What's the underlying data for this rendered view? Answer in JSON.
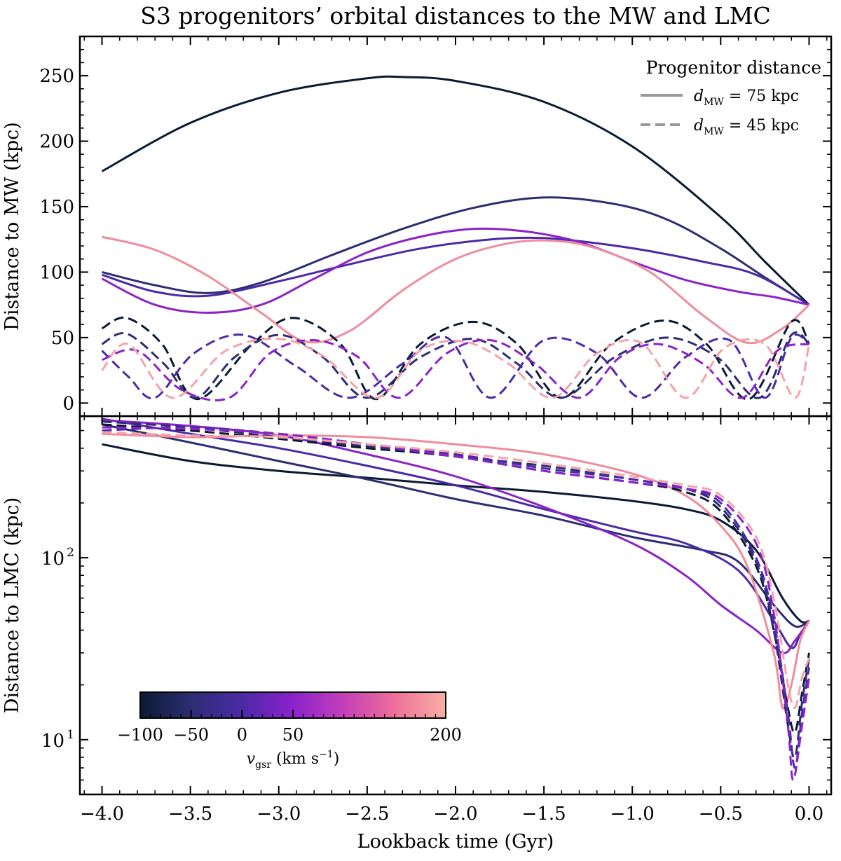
{
  "chart_data": [
    {
      "type": "line",
      "id": "mw",
      "title": "S3 progenitors’ orbital distances to the MW and LMC",
      "xlabel": "Lookback time (Gyr)",
      "ylabel": "Distance to MW (kpc)",
      "xlim": [
        -4.125,
        0.125
      ],
      "ylim": [
        -10,
        280
      ],
      "xticks": [
        -4.0,
        -3.5,
        -3.0,
        -2.5,
        -2.0,
        -1.5,
        -1.0,
        -0.5,
        0.0
      ],
      "xtick_labels": [
        "−4.0",
        "−3.5",
        "−3.0",
        "−2.5",
        "−2.0",
        "−1.5",
        "−1.0",
        "−0.5",
        "0.0"
      ],
      "yticks": [
        0,
        50,
        100,
        150,
        200,
        250
      ],
      "ytick_labels": [
        "0",
        "50",
        "100",
        "150",
        "200",
        "250"
      ],
      "legend": {
        "title": "Progenitor distance",
        "location": "top-right",
        "entries": [
          {
            "label_pre": "d",
            "label_sub": "MW",
            "label_post": " = 75 kpc",
            "style": "solid",
            "color": "#999999"
          },
          {
            "label_pre": "d",
            "label_sub": "MW",
            "label_post": " = 45 kpc",
            "style": "dashed",
            "color": "#999999"
          }
        ]
      },
      "series": [
        {
          "name": "solid, vgsr=-100",
          "style": "solid",
          "color": "#0b1a33",
          "x": [
            -4.0,
            -3.5,
            -3.0,
            -2.5,
            -2.3,
            -2.0,
            -1.5,
            -1.0,
            -0.5,
            -0.25,
            0.0
          ],
          "y": [
            177,
            214,
            237,
            248,
            249,
            246,
            230,
            196,
            142,
            108,
            75
          ]
        },
        {
          "name": "solid, vgsr=-50",
          "style": "solid",
          "color": "#2d2d72",
          "x": [
            -4.0,
            -3.7,
            -3.4,
            -3.1,
            -2.7,
            -2.3,
            -1.9,
            -1.5,
            -1.1,
            -0.8,
            -0.5,
            -0.25,
            0.0
          ],
          "y": [
            100,
            90,
            84,
            92,
            113,
            133,
            149,
            157,
            152,
            140,
            118,
            96,
            75
          ]
        },
        {
          "name": "solid, vgsr=-20",
          "style": "solid",
          "color": "#4a2aa6",
          "x": [
            -4.0,
            -3.7,
            -3.4,
            -3.0,
            -2.6,
            -2.2,
            -1.8,
            -1.5,
            -1.2,
            -0.9,
            -0.6,
            -0.3,
            0.0
          ],
          "y": [
            98,
            85,
            82,
            93,
            106,
            118,
            125,
            126,
            122,
            116,
            108,
            98,
            75
          ]
        },
        {
          "name": "solid, vgsr=20",
          "style": "solid",
          "color": "#8a22cc",
          "x": [
            -4.0,
            -3.7,
            -3.4,
            -3.1,
            -2.8,
            -2.5,
            -2.2,
            -1.9,
            -1.6,
            -1.3,
            -1.0,
            -0.7,
            -0.4,
            -0.2,
            0.0
          ],
          "y": [
            95,
            75,
            69,
            75,
            95,
            115,
            127,
            133,
            131,
            123,
            108,
            94,
            85,
            81,
            75
          ]
        },
        {
          "name": "solid, vgsr=200",
          "style": "solid",
          "color": "#f08c9c",
          "x": [
            -4.0,
            -3.7,
            -3.4,
            -3.1,
            -2.85,
            -2.6,
            -2.3,
            -2.0,
            -1.7,
            -1.45,
            -1.2,
            -0.9,
            -0.6,
            -0.35,
            -0.15,
            0.0
          ],
          "y": [
            127,
            117,
            97,
            69,
            47,
            55,
            86,
            110,
            122,
            124,
            118,
            100,
            67,
            46,
            57,
            75
          ]
        },
        {
          "name": "dashed, vgsr=-100",
          "style": "dashed",
          "color": "#0b1a33",
          "x": [
            -4.0,
            -3.86,
            -3.66,
            -3.46,
            -3.15,
            -2.92,
            -2.65,
            -2.45,
            -2.2,
            -1.9,
            -1.65,
            -1.4,
            -1.12,
            -0.82,
            -0.58,
            -0.34,
            -0.1,
            0.0
          ],
          "y": [
            57,
            65,
            45,
            3,
            45,
            65,
            45,
            3,
            45,
            62,
            45,
            4,
            45,
            63,
            45,
            3,
            62,
            45
          ]
        },
        {
          "name": "dashed, vgsr=-50",
          "style": "dashed",
          "color": "#2d2d72",
          "x": [
            -4.0,
            -3.86,
            -3.65,
            -3.47,
            -3.25,
            -3.0,
            -2.75,
            -2.5,
            -2.2,
            -1.9,
            -1.65,
            -1.4,
            -1.1,
            -0.8,
            -0.52,
            -0.28,
            -0.1,
            0.0
          ],
          "y": [
            45,
            53,
            30,
            4,
            35,
            52,
            35,
            4,
            35,
            49,
            30,
            4,
            35,
            50,
            35,
            4,
            52,
            45
          ]
        },
        {
          "name": "dashed, vgsr=-20",
          "style": "dashed",
          "color": "#4a2aa6",
          "x": [
            -4.0,
            -3.85,
            -3.7,
            -3.48,
            -3.2,
            -2.9,
            -2.6,
            -2.3,
            -2.05,
            -1.8,
            -1.5,
            -1.2,
            -0.95,
            -0.7,
            -0.45,
            -0.25,
            -0.1,
            0.0
          ],
          "y": [
            40,
            20,
            4,
            38,
            52,
            28,
            4,
            30,
            50,
            4,
            48,
            38,
            4,
            35,
            48,
            4,
            50,
            45
          ]
        },
        {
          "name": "dashed, vgsr=20",
          "style": "dashed",
          "color": "#8a22cc",
          "x": [
            -4.0,
            -3.8,
            -3.55,
            -3.28,
            -3.05,
            -2.8,
            -2.55,
            -2.32,
            -2.05,
            -1.8,
            -1.55,
            -1.3,
            -1.07,
            -0.85,
            -0.6,
            -0.38,
            -0.18,
            0.0
          ],
          "y": [
            33,
            40,
            10,
            4,
            38,
            48,
            35,
            4,
            38,
            48,
            30,
            4,
            35,
            45,
            30,
            4,
            40,
            45
          ]
        },
        {
          "name": "dashed, vgsr=200",
          "style": "dashed",
          "color": "#f5a3a8",
          "x": [
            -4.0,
            -3.85,
            -3.6,
            -3.3,
            -3.0,
            -2.75,
            -2.45,
            -2.2,
            -1.95,
            -1.7,
            -1.45,
            -1.2,
            -0.95,
            -0.7,
            -0.48,
            -0.25,
            -0.08,
            0.0
          ],
          "y": [
            25,
            45,
            4,
            40,
            49,
            36,
            4,
            40,
            47,
            30,
            4,
            38,
            46,
            4,
            42,
            45,
            4,
            45
          ]
        }
      ]
    },
    {
      "type": "line",
      "id": "lmc",
      "xlabel": "Lookback time (Gyr)",
      "ylabel": "Distance to LMC (kpc)",
      "yscale": "log",
      "xlim": [
        -4.125,
        0.125
      ],
      "ylim": [
        5,
        600
      ],
      "ytick_major": [
        10,
        100
      ],
      "ytick_labels": [
        {
          "base": "10",
          "exp": "1"
        },
        {
          "base": "10",
          "exp": "2"
        }
      ],
      "series": [
        {
          "name": "solid, vgsr=-100",
          "style": "solid",
          "color": "#0b1a33",
          "x": [
            -4.0,
            -3.5,
            -3.0,
            -2.5,
            -2.0,
            -1.5,
            -1.0,
            -0.7,
            -0.5,
            -0.3,
            -0.15,
            -0.05,
            0.0
          ],
          "y": [
            420,
            340,
            300,
            275,
            250,
            230,
            205,
            185,
            160,
            110,
            60,
            45,
            45
          ]
        },
        {
          "name": "solid, vgsr=-50",
          "style": "solid",
          "color": "#2d2d72",
          "x": [
            -4.0,
            -3.5,
            -3.0,
            -2.5,
            -2.0,
            -1.5,
            -1.0,
            -0.6,
            -0.4,
            -0.2,
            -0.08,
            0.0
          ],
          "y": [
            540,
            430,
            340,
            270,
            210,
            170,
            130,
            110,
            95,
            55,
            42,
            45
          ]
        },
        {
          "name": "solid, vgsr=-20",
          "style": "solid",
          "color": "#4a2aa6",
          "x": [
            -4.0,
            -3.5,
            -3.0,
            -2.5,
            -2.0,
            -1.5,
            -1.0,
            -0.7,
            -0.4,
            -0.2,
            -0.1,
            -0.05,
            0.0
          ],
          "y": [
            580,
            480,
            400,
            320,
            250,
            185,
            140,
            120,
            85,
            45,
            32,
            38,
            45
          ]
        },
        {
          "name": "solid, vgsr=20",
          "style": "solid",
          "color": "#8a22cc",
          "x": [
            -4.0,
            -3.5,
            -3.0,
            -2.5,
            -2.0,
            -1.5,
            -1.0,
            -0.7,
            -0.5,
            -0.3,
            -0.15,
            -0.08,
            0.0
          ],
          "y": [
            570,
            530,
            470,
            370,
            280,
            190,
            120,
            80,
            55,
            40,
            30,
            35,
            45
          ]
        },
        {
          "name": "solid, vgsr=200",
          "style": "solid",
          "color": "#f08c9c",
          "x": [
            -4.0,
            -3.5,
            -3.0,
            -2.5,
            -2.0,
            -1.5,
            -1.0,
            -0.7,
            -0.5,
            -0.35,
            -0.2,
            -0.15,
            -0.1,
            -0.05,
            0.0
          ],
          "y": [
            480,
            460,
            470,
            460,
            420,
            370,
            290,
            220,
            150,
            90,
            30,
            15,
            20,
            35,
            45
          ]
        },
        {
          "name": "dashed, vgsr=-100",
          "style": "dashed",
          "color": "#0b1a33",
          "x": [
            -4.0,
            -3.5,
            -3.0,
            -2.5,
            -2.0,
            -1.5,
            -1.0,
            -0.7,
            -0.5,
            -0.3,
            -0.2,
            -0.12,
            -0.08,
            -0.04,
            0.0
          ],
          "y": [
            540,
            500,
            450,
            400,
            360,
            300,
            260,
            230,
            180,
            90,
            40,
            15,
            11,
            18,
            30
          ]
        },
        {
          "name": "dashed, vgsr=-50",
          "style": "dashed",
          "color": "#2d2d72",
          "x": [
            -4.0,
            -3.5,
            -3.0,
            -2.5,
            -2.0,
            -1.5,
            -1.0,
            -0.7,
            -0.5,
            -0.3,
            -0.2,
            -0.12,
            -0.08,
            -0.04,
            0.0
          ],
          "y": [
            560,
            520,
            460,
            410,
            360,
            320,
            270,
            240,
            190,
            95,
            40,
            12,
            8,
            16,
            28
          ]
        },
        {
          "name": "dashed, vgsr=-20",
          "style": "dashed",
          "color": "#4a2aa6",
          "x": [
            -4.0,
            -3.5,
            -3.0,
            -2.5,
            -2.0,
            -1.5,
            -1.0,
            -0.7,
            -0.5,
            -0.3,
            -0.2,
            -0.12,
            -0.08,
            -0.04,
            0.0
          ],
          "y": [
            500,
            520,
            480,
            420,
            370,
            310,
            270,
            240,
            200,
            100,
            45,
            14,
            7,
            14,
            25
          ]
        },
        {
          "name": "dashed, vgsr=20",
          "style": "dashed",
          "color": "#8a22cc",
          "x": [
            -4.0,
            -3.5,
            -3.0,
            -2.5,
            -2.0,
            -1.5,
            -1.0,
            -0.7,
            -0.5,
            -0.3,
            -0.2,
            -0.12,
            -0.09,
            -0.04,
            0.0
          ],
          "y": [
            520,
            510,
            480,
            420,
            360,
            300,
            260,
            240,
            210,
            120,
            50,
            12,
            6,
            12,
            22
          ]
        },
        {
          "name": "dashed, vgsr=200",
          "style": "dashed",
          "color": "#f5a3a8",
          "x": [
            -4.0,
            -3.5,
            -3.0,
            -2.5,
            -2.0,
            -1.5,
            -1.0,
            -0.7,
            -0.5,
            -0.3,
            -0.2,
            -0.12,
            -0.08,
            -0.04,
            0.0
          ],
          "y": [
            490,
            470,
            460,
            420,
            380,
            330,
            280,
            250,
            220,
            130,
            60,
            20,
            15,
            22,
            28
          ]
        }
      ]
    }
  ],
  "colorbar": {
    "label_pre": "v",
    "label_sub": "gsr",
    "label_post": " (km s",
    "label_exp": "−1",
    "label_close": ")",
    "range": [
      -100,
      200
    ],
    "ticks": [
      -100,
      -50,
      0,
      50,
      200
    ],
    "tick_labels": [
      "−100",
      "−50",
      "0",
      "50",
      "200"
    ],
    "stops": [
      "#0b1a33",
      "#2d2d72",
      "#4a2aa6",
      "#8a22cc",
      "#c43fb8",
      "#ee6f9a",
      "#f7b0a2"
    ]
  }
}
